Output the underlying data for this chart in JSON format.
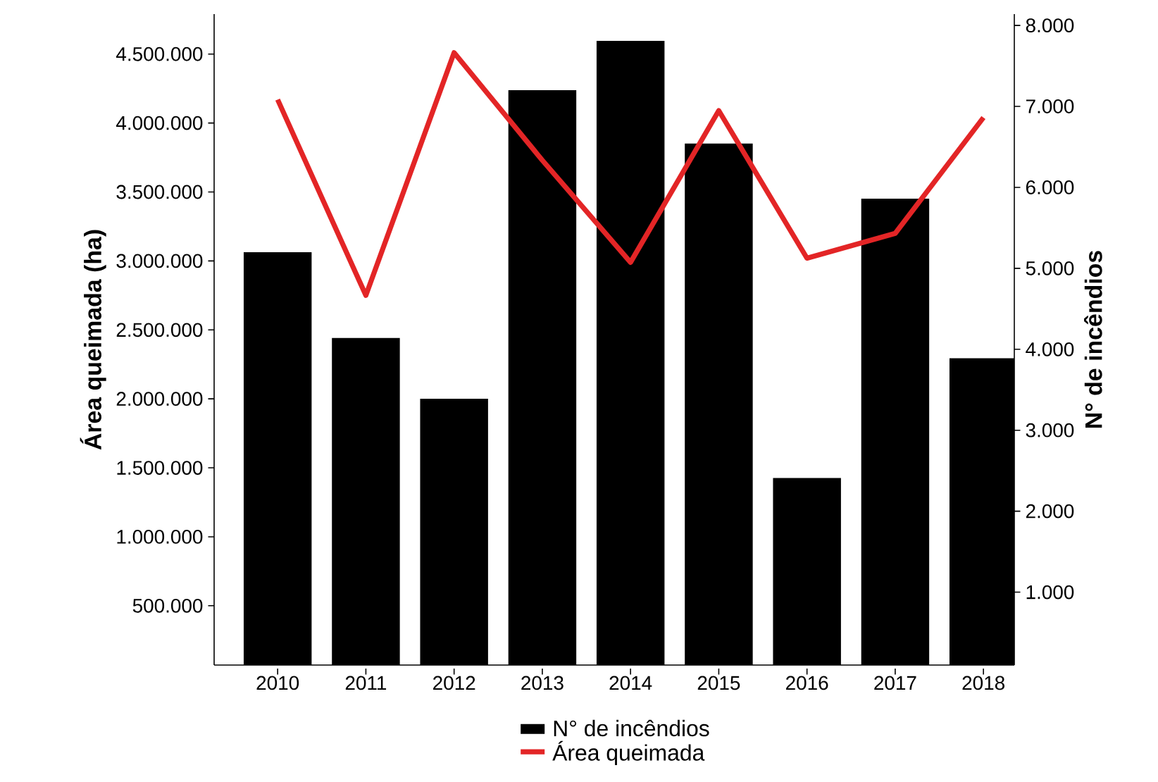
{
  "chart_data": {
    "type": "bar",
    "categories": [
      "2010",
      "2011",
      "2012",
      "2013",
      "2014",
      "2015",
      "2016",
      "2017",
      "2018"
    ],
    "series": [
      {
        "name": "N° de incêndios",
        "axis": "y2",
        "color": "#000000",
        "values": [
          5200,
          4140,
          3390,
          7200,
          7810,
          6540,
          2410,
          5860,
          3890
        ]
      },
      {
        "name": "Área queimada",
        "type": "line",
        "color": "#e32526",
        "values": [
          4170000,
          2750000,
          4510000,
          3730000,
          2990000,
          4090000,
          3020000,
          3200000,
          4040000
        ]
      }
    ],
    "ylabel": "Área queimada (ha)",
    "y2label": "N° de incêndios",
    "ylim": [
      70000,
      4790000
    ],
    "yticks": [
      {
        "value": 500000,
        "label": "500.000"
      },
      {
        "value": 1000000,
        "label": "1.000.000"
      },
      {
        "value": 1500000,
        "label": "1.500.000"
      },
      {
        "value": 2000000,
        "label": "2.000.000"
      },
      {
        "value": 2500000,
        "label": "2.500.000"
      },
      {
        "value": 3000000,
        "label": "3.000.000"
      },
      {
        "value": 3500000,
        "label": "3.500.000"
      },
      {
        "value": 4000000,
        "label": "4.000.000"
      },
      {
        "value": 4500000,
        "label": "4.500.000"
      }
    ],
    "y2lim": [
      100,
      8140
    ],
    "y2ticks": [
      {
        "value": 1000,
        "label": "1.000"
      },
      {
        "value": 2000,
        "label": "2.000"
      },
      {
        "value": 3000,
        "label": "3.000"
      },
      {
        "value": 4000,
        "label": "4.000"
      },
      {
        "value": 5000,
        "label": "5.000"
      },
      {
        "value": 6000,
        "label": "6.000"
      },
      {
        "value": 7000,
        "label": "7.000"
      },
      {
        "value": 8000,
        "label": "8.000"
      }
    ],
    "legend": "bottom"
  }
}
